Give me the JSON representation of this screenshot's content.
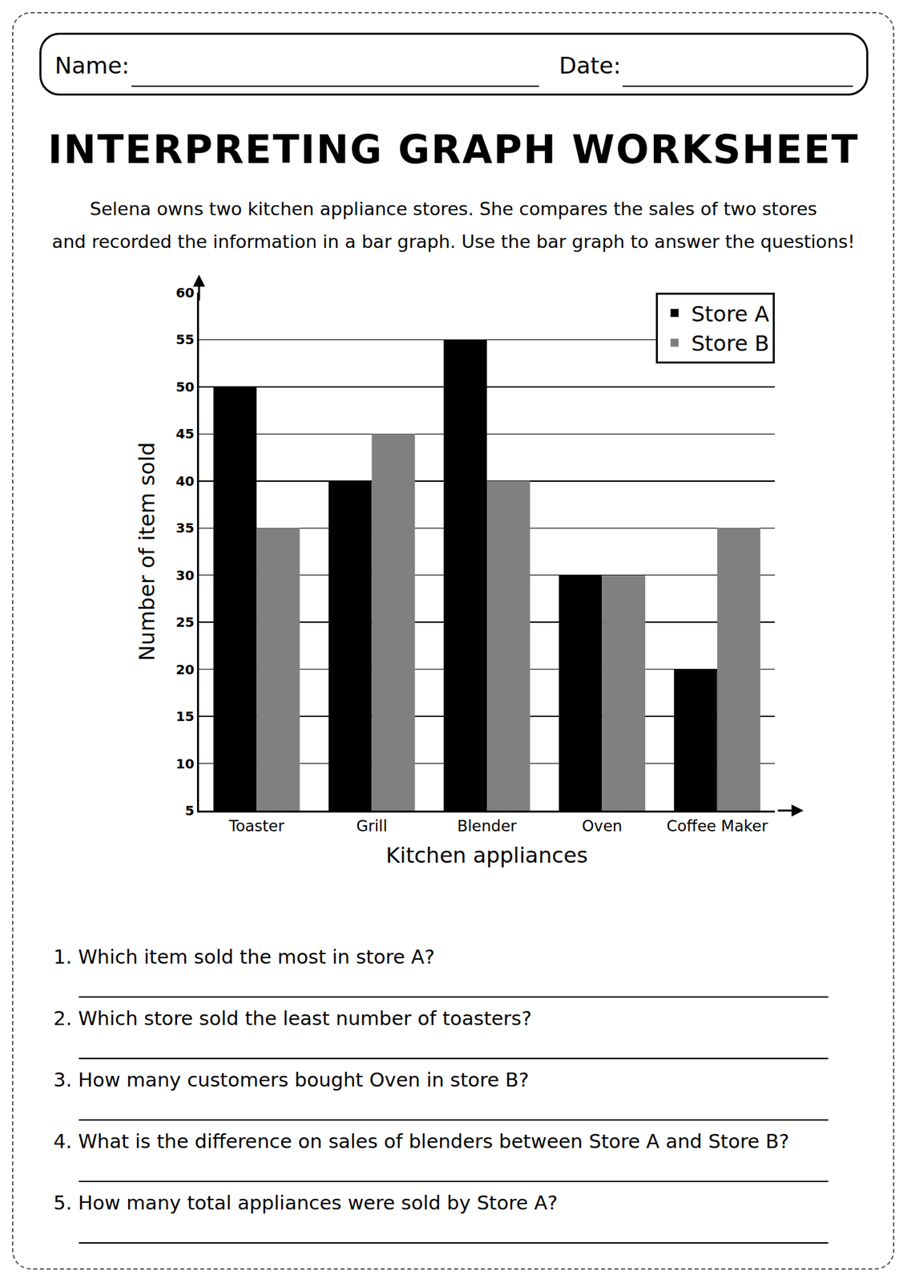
{
  "header": {
    "name_label": "Name:",
    "date_label": "Date:"
  },
  "title": "INTERPRETING GRAPH WORKSHEET",
  "intro": [
    "Selena owns two kitchen appliance stores. She compares the sales of two stores",
    "and recorded the information in a bar graph. Use the bar graph to answer the questions!"
  ],
  "chart_data": {
    "type": "bar",
    "x_label": "Kitchen appliances",
    "y_label": "Number of item sold",
    "categories": [
      "Toaster",
      "Grill",
      "Blender",
      "Oven",
      "Coffee Maker"
    ],
    "series": [
      {
        "name": "Store A",
        "color": "#000000",
        "values": [
          50,
          40,
          55,
          30,
          20
        ]
      },
      {
        "name": "Store B",
        "color": "#808080",
        "values": [
          35,
          45,
          40,
          30,
          35
        ]
      }
    ],
    "ylim": [
      5,
      60
    ],
    "yticks": [
      5,
      10,
      15,
      20,
      25,
      30,
      35,
      40,
      45,
      50,
      55,
      60
    ],
    "grid": true,
    "legend": "upper right"
  },
  "questions": [
    "1. Which item sold the most in store A?",
    "2. Which store sold the least number of toasters?",
    "3. How many customers bought Oven in store B?",
    "4. What is the difference on sales of blenders between Store A and Store B?",
    "5. How many total appliances were sold by Store A?"
  ]
}
